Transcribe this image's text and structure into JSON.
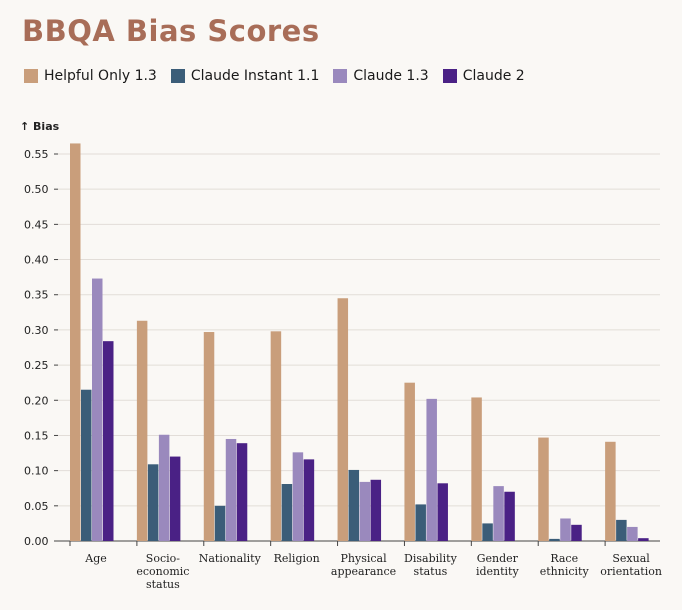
{
  "chart_data": {
    "type": "bar",
    "title": "BBQA Bias Scores",
    "xlabel": "",
    "ylabel": "↑ Bias",
    "ylim": [
      0,
      0.55
    ],
    "yticks": [
      "0.00",
      "0.05",
      "0.10",
      "0.15",
      "0.20",
      "0.25",
      "0.30",
      "0.35",
      "0.40",
      "0.45",
      "0.50",
      "0.55"
    ],
    "grid": true,
    "legend_position": "top-left",
    "categories": [
      [
        "Age"
      ],
      [
        "Socio-",
        "economic",
        "status"
      ],
      [
        "Nationality"
      ],
      [
        "Religion"
      ],
      [
        "Physical",
        "appearance"
      ],
      [
        "Disability",
        "status"
      ],
      [
        "Gender",
        "identity"
      ],
      [
        "Race",
        "ethnicity"
      ],
      [
        "Sexual",
        "orientation"
      ]
    ],
    "series": [
      {
        "name": "Helpful Only 1.3",
        "color": "#c99e7b",
        "values": [
          0.565,
          0.313,
          0.297,
          0.298,
          0.345,
          0.225,
          0.204,
          0.147,
          0.141
        ]
      },
      {
        "name": "Claude Instant 1.1",
        "color": "#3b5d78",
        "values": [
          0.215,
          0.109,
          0.05,
          0.081,
          0.101,
          0.052,
          0.025,
          0.003,
          0.03
        ]
      },
      {
        "name": "Claude 1.3",
        "color": "#9a89bd",
        "values": [
          0.373,
          0.151,
          0.145,
          0.126,
          0.084,
          0.202,
          0.078,
          0.032,
          0.02
        ]
      },
      {
        "name": "Claude 2",
        "color": "#4a2185",
        "values": [
          0.284,
          0.12,
          0.139,
          0.116,
          0.087,
          0.082,
          0.07,
          0.023,
          0.004
        ]
      }
    ]
  }
}
